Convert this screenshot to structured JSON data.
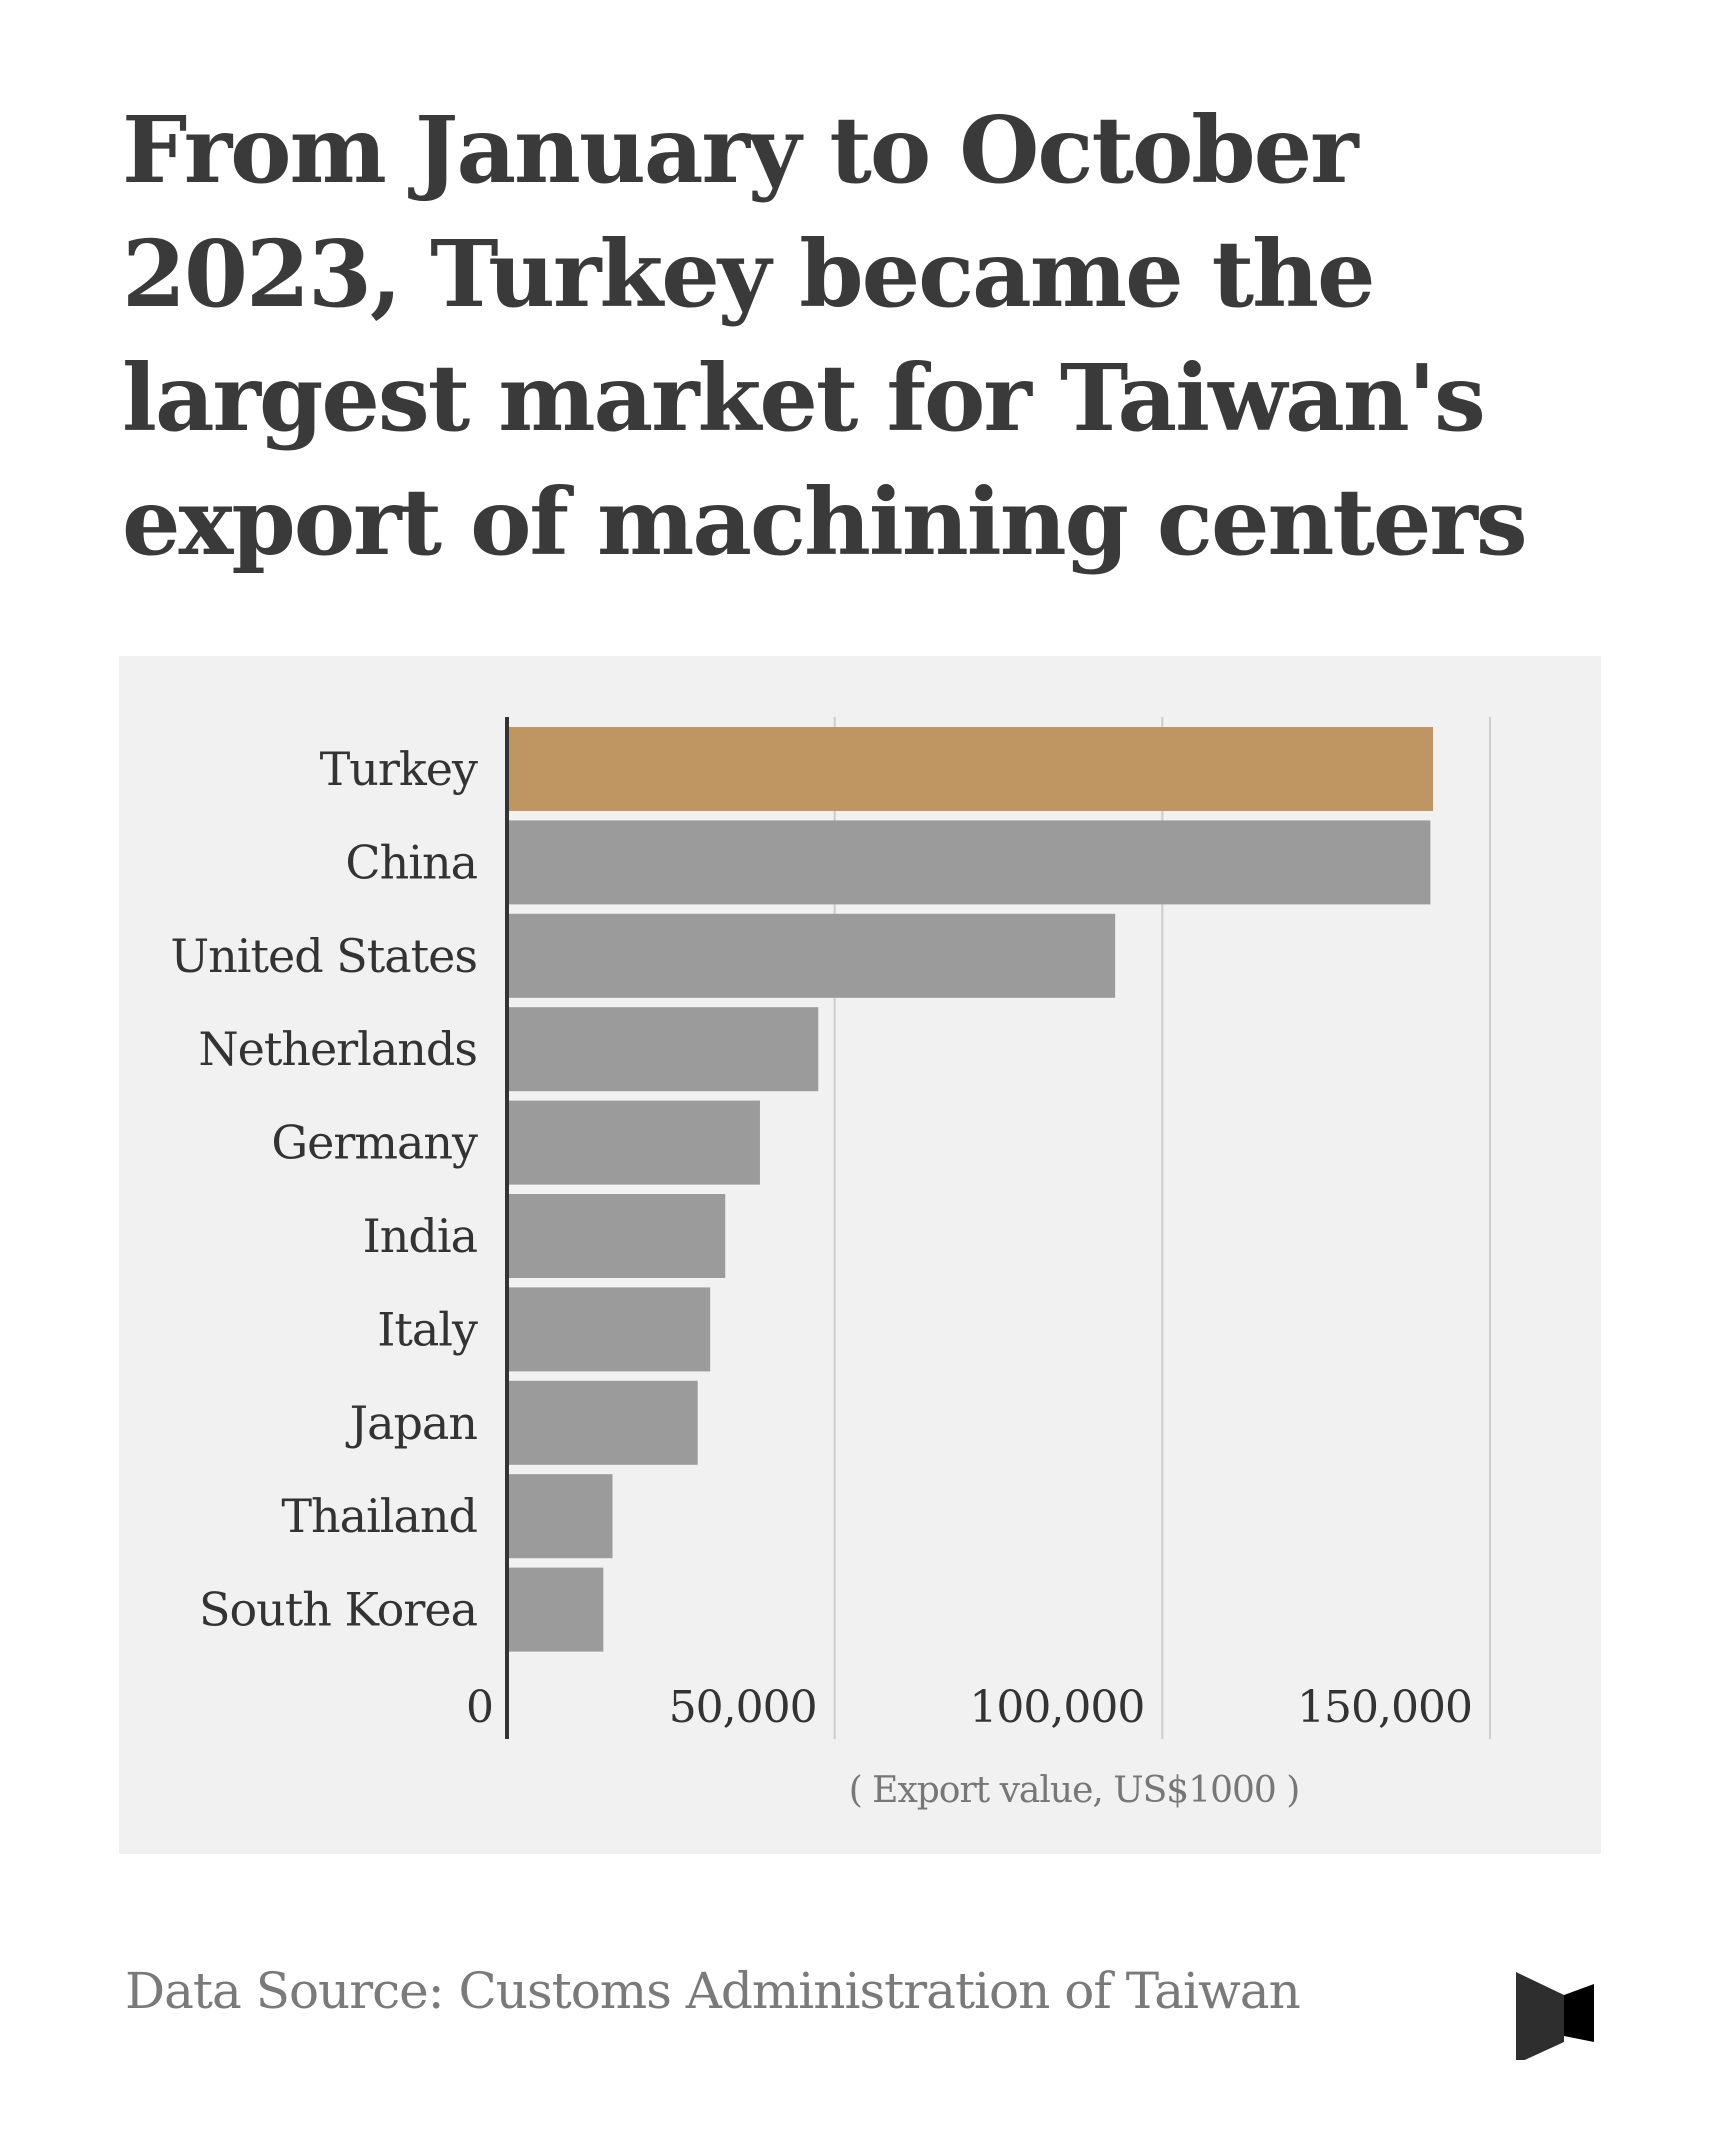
{
  "title": "From January to October 2023, Turkey became the largest market for Taiwan's export of machining centers",
  "source": "Data Source: Customs Administration of Taiwan",
  "logo": {
    "icon": "brand-logo-icon",
    "color": "#2a2a2a"
  },
  "chart_data": {
    "type": "bar",
    "orientation": "horizontal",
    "categories": [
      "Turkey",
      "China",
      "United States",
      "Netherlands",
      "Germany",
      "India",
      "Italy",
      "Japan",
      "Thailand",
      "South Korea"
    ],
    "values": [
      141300,
      140900,
      92800,
      47500,
      38600,
      33300,
      31000,
      29100,
      16100,
      14700
    ],
    "highlight": "Turkey",
    "colors": {
      "highlight": "#bf9662",
      "default": "#9b9b9b",
      "background": "#f1f1f1",
      "grid": "#cccccc",
      "axis": "#333333"
    },
    "xlabel": "( Export value, US$1000 )",
    "xlim": [
      0,
      150000
    ],
    "xticks": [
      0,
      50000,
      100000,
      150000
    ],
    "xtick_labels": [
      "0",
      "50,000",
      "100,000",
      "150,000"
    ],
    "grid": true
  }
}
